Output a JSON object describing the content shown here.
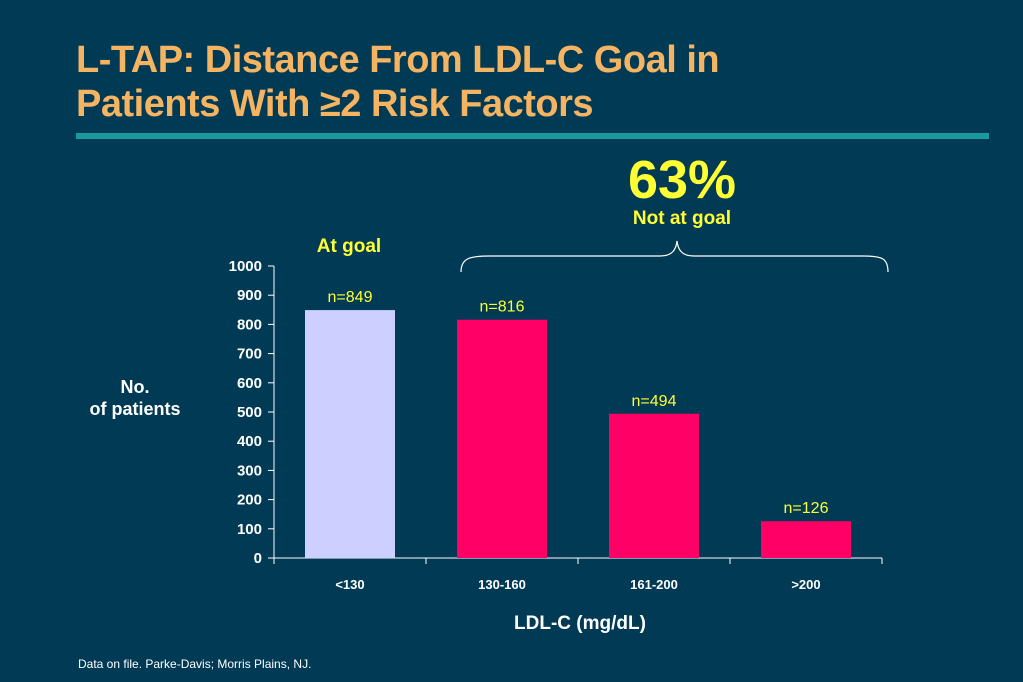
{
  "title": {
    "line1": "L-TAP: Distance From LDL-C Goal in",
    "line2": "Patients With ≥2 Risk Factors"
  },
  "callouts": {
    "percent": "63%",
    "not_at_goal": "Not at goal",
    "at_goal": "At goal"
  },
  "footnote": "Data on file.  Parke-Davis; Morris Plains, NJ.",
  "colors": {
    "background": "#013a55",
    "title": "#f5b461",
    "rule": "#1a9a9a",
    "highlight": "#ffff33",
    "at_goal_bar": "#cccfff",
    "not_goal_bar": "#ff0066"
  },
  "chart_data": {
    "type": "bar",
    "xlabel": "LDL-C (mg/dL)",
    "ylabel_line1": "No.",
    "ylabel_line2": "of patients",
    "categories": [
      "<130",
      "130-160",
      "161-200",
      ">200"
    ],
    "values": [
      849,
      816,
      494,
      126
    ],
    "data_labels": [
      "n=849",
      "n=816",
      "n=494",
      "n=126"
    ],
    "ylim": [
      0,
      1000
    ],
    "yticks": [
      0,
      100,
      200,
      300,
      400,
      500,
      600,
      700,
      800,
      900,
      1000
    ],
    "bar_colors": [
      "#cccfff",
      "#ff0066",
      "#ff0066",
      "#ff0066"
    ],
    "grid": false
  }
}
